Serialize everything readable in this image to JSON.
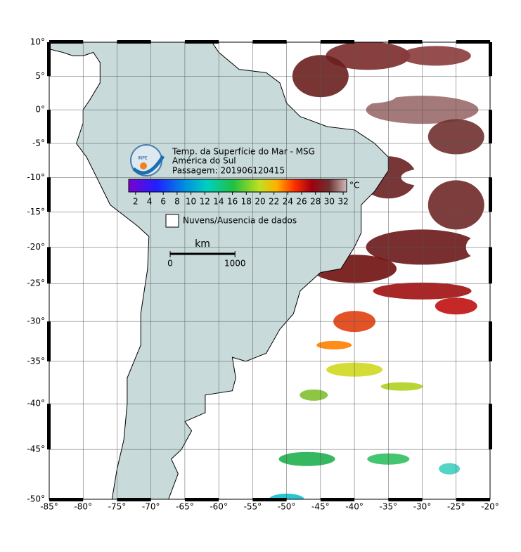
{
  "map": {
    "title": "Temp. da Superfície do Mar - MSG",
    "subtitle": "América do Sul",
    "pass": "Passagem: 201906120415",
    "logo": "INPE",
    "xlim": [
      -85,
      -20
    ],
    "ylim": [
      -50,
      10
    ],
    "xticks": [
      {
        "value": -85,
        "label": "-85°"
      },
      {
        "value": -80,
        "label": "-80°"
      },
      {
        "value": -75,
        "label": "-75°"
      },
      {
        "value": -70,
        "label": "-70°"
      },
      {
        "value": -65,
        "label": "-65°"
      },
      {
        "value": -60,
        "label": "-60°"
      },
      {
        "value": -55,
        "label": "-55°"
      },
      {
        "value": -50,
        "label": "-50°"
      },
      {
        "value": -45,
        "label": "-45°"
      },
      {
        "value": -40,
        "label": "-40°"
      },
      {
        "value": -35,
        "label": "-35°"
      },
      {
        "value": -30,
        "label": "-30°"
      },
      {
        "value": -25,
        "label": "-25°"
      },
      {
        "value": -20,
        "label": "-20°"
      }
    ],
    "yticks": [
      {
        "value": 10,
        "label": "10°"
      },
      {
        "value": 5,
        "label": "5°"
      },
      {
        "value": 0,
        "label": "0°"
      },
      {
        "value": -5,
        "label": "-5°"
      },
      {
        "value": -10,
        "label": "-10°"
      },
      {
        "value": -15,
        "label": "-15°"
      },
      {
        "value": -20,
        "label": "-20°"
      },
      {
        "value": -25,
        "label": "-25°"
      },
      {
        "value": -30,
        "label": "-30°"
      },
      {
        "value": -35,
        "label": "-35°"
      },
      {
        "value": -40,
        "label": "-40°"
      },
      {
        "value": -45,
        "label": "-45°"
      },
      {
        "value": -50,
        "label": "-50°"
      }
    ],
    "grid": true,
    "colorbar": {
      "lim": [
        1,
        32.5
      ],
      "ticks": [
        2,
        4,
        6,
        8,
        10,
        12,
        14,
        16,
        18,
        20,
        22,
        24,
        26,
        28,
        30,
        32
      ],
      "unit": "°C"
    },
    "legend": "Nuvens/Ausencia de dados",
    "scale": {
      "unit": "km",
      "ticks": [
        0,
        1000
      ]
    }
  }
}
